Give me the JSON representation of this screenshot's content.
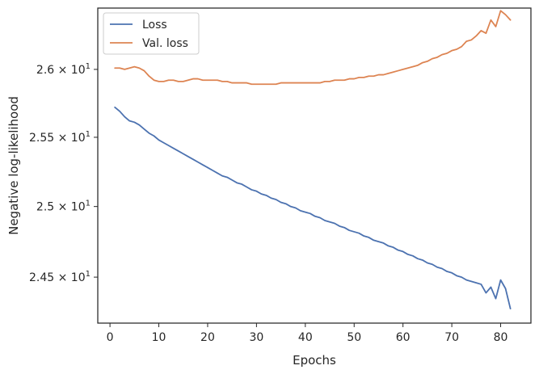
{
  "chart_data": {
    "type": "line",
    "xlabel": "Epochs",
    "ylabel": "Negative log-likelihood",
    "xlim": [
      -2.5,
      86.2
    ],
    "ylim": [
      24.18,
      26.46
    ],
    "y_scale": "log",
    "grid": false,
    "legend_position": "top-left",
    "x_ticks": [
      {
        "value": 0,
        "label": "0"
      },
      {
        "value": 10,
        "label": "10"
      },
      {
        "value": 20,
        "label": "20"
      },
      {
        "value": 30,
        "label": "30"
      },
      {
        "value": 40,
        "label": "40"
      },
      {
        "value": 50,
        "label": "50"
      },
      {
        "value": 60,
        "label": "60"
      },
      {
        "value": 70,
        "label": "70"
      },
      {
        "value": 80,
        "label": "80"
      }
    ],
    "y_ticks": [
      {
        "value": 24.5,
        "mantissa": "2.45",
        "exponent": "1"
      },
      {
        "value": 25.0,
        "mantissa": "2.5",
        "exponent": "1"
      },
      {
        "value": 25.5,
        "mantissa": "2.55",
        "exponent": "1"
      },
      {
        "value": 26.0,
        "mantissa": "2.6",
        "exponent": "1"
      }
    ],
    "series": [
      {
        "name": "Loss",
        "color": "#4c72b0",
        "x": [
          1,
          2,
          3,
          4,
          5,
          6,
          7,
          8,
          9,
          10,
          11,
          12,
          13,
          14,
          15,
          16,
          17,
          18,
          19,
          20,
          21,
          22,
          23,
          24,
          25,
          26,
          27,
          28,
          29,
          30,
          31,
          32,
          33,
          34,
          35,
          36,
          37,
          38,
          39,
          40,
          41,
          42,
          43,
          44,
          45,
          46,
          47,
          48,
          49,
          50,
          51,
          52,
          53,
          54,
          55,
          56,
          57,
          58,
          59,
          60,
          61,
          62,
          63,
          64,
          65,
          66,
          67,
          68,
          69,
          70,
          71,
          72,
          73,
          74,
          75,
          76,
          77,
          78,
          79,
          80,
          81,
          82
        ],
        "y": [
          25.72,
          25.69,
          25.65,
          25.62,
          25.61,
          25.59,
          25.56,
          25.53,
          25.51,
          25.48,
          25.46,
          25.44,
          25.42,
          25.4,
          25.38,
          25.36,
          25.34,
          25.32,
          25.3,
          25.28,
          25.26,
          25.24,
          25.22,
          25.21,
          25.19,
          25.17,
          25.16,
          25.14,
          25.12,
          25.11,
          25.09,
          25.08,
          25.06,
          25.05,
          25.03,
          25.02,
          25.0,
          24.99,
          24.97,
          24.96,
          24.95,
          24.93,
          24.92,
          24.9,
          24.89,
          24.88,
          24.86,
          24.85,
          24.83,
          24.82,
          24.81,
          24.79,
          24.78,
          24.76,
          24.75,
          24.74,
          24.72,
          24.71,
          24.69,
          24.68,
          24.66,
          24.65,
          24.63,
          24.62,
          24.6,
          24.59,
          24.57,
          24.56,
          24.54,
          24.53,
          24.51,
          24.5,
          24.48,
          24.47,
          24.46,
          24.45,
          24.39,
          24.43,
          24.35,
          24.48,
          24.42,
          24.28
        ]
      },
      {
        "name": "Val. loss",
        "color": "#dd8452",
        "x": [
          1,
          2,
          3,
          4,
          5,
          6,
          7,
          8,
          9,
          10,
          11,
          12,
          13,
          14,
          15,
          16,
          17,
          18,
          19,
          20,
          21,
          22,
          23,
          24,
          25,
          26,
          27,
          28,
          29,
          30,
          31,
          32,
          33,
          34,
          35,
          36,
          37,
          38,
          39,
          40,
          41,
          42,
          43,
          44,
          45,
          46,
          47,
          48,
          49,
          50,
          51,
          52,
          53,
          54,
          55,
          56,
          57,
          58,
          59,
          60,
          61,
          62,
          63,
          64,
          65,
          66,
          67,
          68,
          69,
          70,
          71,
          72,
          73,
          74,
          75,
          76,
          77,
          78,
          79,
          80,
          81,
          82
        ],
        "y": [
          26.01,
          26.01,
          26.0,
          26.01,
          26.02,
          26.01,
          25.99,
          25.95,
          25.92,
          25.91,
          25.91,
          25.92,
          25.92,
          25.91,
          25.91,
          25.92,
          25.93,
          25.93,
          25.92,
          25.92,
          25.92,
          25.92,
          25.91,
          25.91,
          25.9,
          25.9,
          25.9,
          25.9,
          25.89,
          25.89,
          25.89,
          25.89,
          25.89,
          25.89,
          25.9,
          25.9,
          25.9,
          25.9,
          25.9,
          25.9,
          25.9,
          25.9,
          25.9,
          25.91,
          25.91,
          25.92,
          25.92,
          25.92,
          25.93,
          25.93,
          25.94,
          25.94,
          25.95,
          25.95,
          25.96,
          25.96,
          25.97,
          25.98,
          25.99,
          26.0,
          26.01,
          26.02,
          26.03,
          26.05,
          26.06,
          26.08,
          26.09,
          26.11,
          26.12,
          26.14,
          26.15,
          26.17,
          26.21,
          26.22,
          26.25,
          26.29,
          26.27,
          26.37,
          26.32,
          26.44,
          26.41,
          26.37
        ]
      }
    ]
  }
}
